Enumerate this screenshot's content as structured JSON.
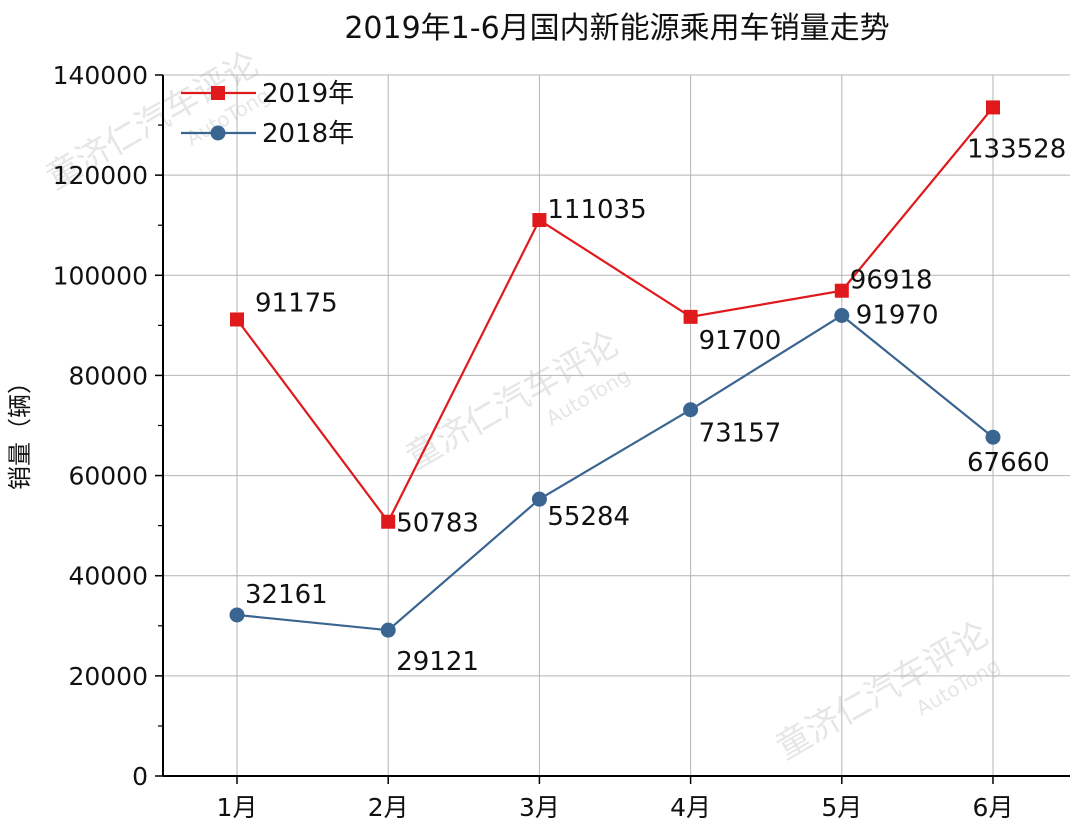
{
  "chart_data": {
    "type": "line",
    "title": "2019年1-6月国内新能源乘用车销量走势",
    "xlabel": "",
    "ylabel": "销量（辆）",
    "categories": [
      "1月",
      "2月",
      "3月",
      "4月",
      "5月",
      "6月"
    ],
    "ylim": [
      0,
      140000
    ],
    "yticks": [
      "0",
      "20000",
      "40000",
      "60000",
      "80000",
      "100000",
      "120000",
      "140000"
    ],
    "grid": true,
    "legend_position": "top-left",
    "series": [
      {
        "name": "2019年",
        "color": "#e0191c",
        "marker": "square",
        "values": [
          91175,
          50783,
          111035,
          91700,
          96918,
          133528
        ],
        "labels": [
          "91175",
          "50783",
          "111035",
          "91700",
          "96918",
          "133528"
        ]
      },
      {
        "name": "2018年",
        "color": "#3a6590",
        "marker": "circle",
        "values": [
          32161,
          29121,
          55284,
          73157,
          91970,
          67660
        ],
        "labels": [
          "32161",
          "29121",
          "55284",
          "73157",
          "91970",
          "67660"
        ]
      }
    ]
  },
  "watermark": {
    "text": "童济仁汽车评论",
    "sub": "AutoTong"
  }
}
